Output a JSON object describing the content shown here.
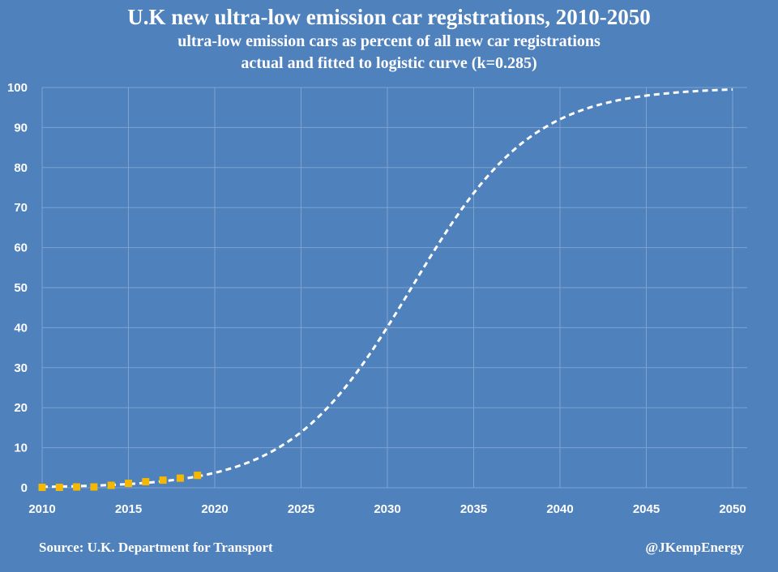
{
  "chart_data": {
    "type": "line",
    "title": "U.K new ultra-low emission car registrations, 2010-2050",
    "subtitle_lines": [
      "ultra-low emission cars as percent of all new car registrations",
      "actual and fitted to logistic curve (k=0.285)"
    ],
    "xlabel": "",
    "ylabel": "",
    "xlim": [
      2010,
      2050
    ],
    "ylim": [
      0,
      100
    ],
    "x_ticks": [
      2010,
      2015,
      2020,
      2025,
      2030,
      2035,
      2040,
      2045,
      2050
    ],
    "y_ticks": [
      0,
      10,
      20,
      30,
      40,
      50,
      60,
      70,
      80,
      90,
      100
    ],
    "grid": true,
    "logistic": {
      "k": 0.285,
      "midpoint": 2031.4,
      "max": 100
    },
    "series": [
      {
        "style": "dashed-line",
        "color": "#ffffff",
        "x": [
          2010,
          2012,
          2014,
          2016,
          2018,
          2020,
          2022,
          2024,
          2025,
          2026,
          2028,
          2030,
          2032,
          2034,
          2035,
          2036,
          2038,
          2040,
          2042,
          2044,
          2046,
          2048,
          2050
        ],
        "values": [
          0.2,
          0.4,
          0.6,
          1.1,
          2.0,
          3.5,
          6.5,
          11.5,
          14.5,
          18.8,
          29.6,
          40.5,
          54.0,
          67.5,
          73.6,
          79.0,
          87.0,
          92.0,
          95.3,
          97.3,
          98.5,
          99.1,
          99.5
        ]
      },
      {
        "style": "square-markers",
        "color": "#f5b800",
        "x": [
          2010,
          2011,
          2012,
          2013,
          2014,
          2015,
          2016,
          2017,
          2018,
          2019
        ],
        "values": [
          0.1,
          0.1,
          0.2,
          0.2,
          0.6,
          1.1,
          1.5,
          1.9,
          2.4,
          3.1
        ]
      }
    ]
  },
  "footer": {
    "source": "Source: U.K. Department for Transport",
    "handle": "@JKempEnergy"
  }
}
